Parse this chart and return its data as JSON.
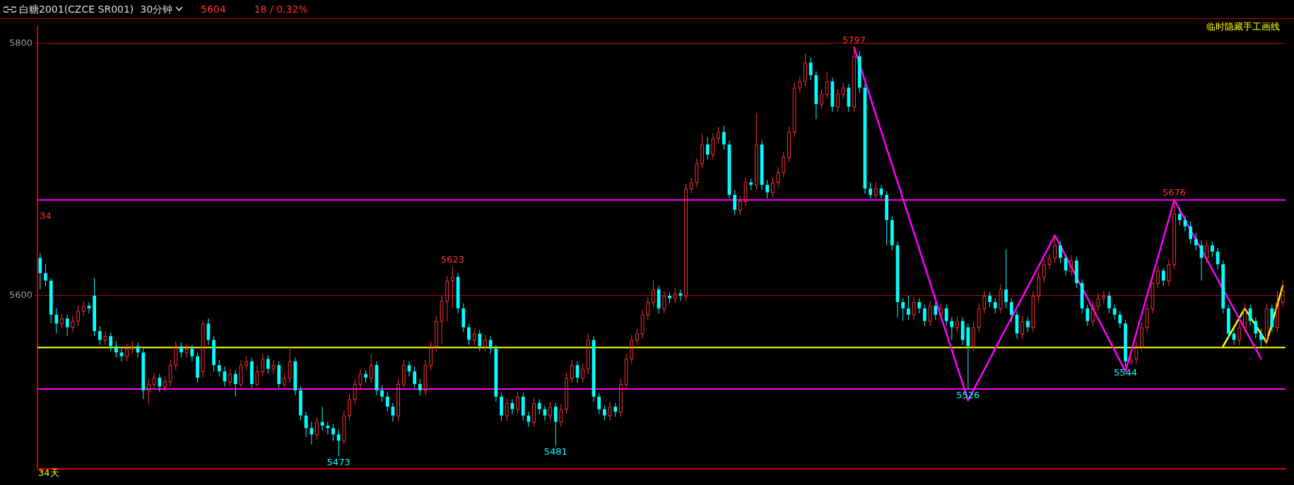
{
  "chart_data": {
    "type": "candlestick",
    "title": "白糖2001(CZCE SR001)  30分钟",
    "categories": [
      null,
      null,
      null,
      null,
      null,
      null,
      null,
      null,
      null,
      null,
      null,
      null,
      null,
      null,
      null,
      null,
      null,
      null,
      null,
      null,
      null,
      null,
      null,
      null,
      null,
      null,
      null,
      null,
      null,
      null,
      null,
      null,
      null,
      null,
      null,
      null,
      null,
      null,
      null,
      null,
      null,
      null,
      null,
      null,
      null,
      null,
      null,
      null,
      null,
      null,
      null,
      null,
      null,
      null,
      null,
      null,
      null,
      null,
      null,
      null,
      null,
      null,
      null,
      null,
      null,
      null,
      null,
      null,
      null,
      null,
      null,
      null,
      null,
      null,
      null,
      null,
      null,
      null,
      null,
      null,
      null,
      null,
      null,
      null,
      null,
      null,
      null,
      null,
      null,
      null,
      null,
      null,
      null,
      null,
      null,
      null,
      null,
      null,
      null,
      null,
      null,
      null,
      null,
      null,
      null,
      null,
      null,
      null,
      null,
      null,
      null,
      null,
      null,
      null,
      null,
      null,
      null,
      null,
      null,
      null,
      null,
      null,
      null,
      null,
      null,
      null,
      null,
      null,
      null,
      null,
      null,
      null,
      null,
      null,
      null,
      null,
      null,
      null,
      null,
      null,
      null,
      null,
      null,
      null,
      null,
      null,
      null,
      null,
      null,
      null,
      null,
      null,
      null,
      null,
      null,
      null,
      null,
      null,
      null,
      null,
      null,
      null,
      null,
      null,
      null,
      null,
      null,
      null,
      null,
      null,
      null,
      null,
      null,
      null,
      null,
      null,
      null,
      null,
      null,
      null,
      null,
      null,
      null,
      null,
      null,
      null,
      null,
      null,
      null,
      null,
      null,
      null,
      null,
      null,
      null,
      null,
      null,
      null,
      null,
      null,
      null,
      null,
      null,
      null,
      null,
      null,
      null,
      null,
      null,
      null,
      null,
      null,
      null,
      null,
      null,
      null,
      null,
      null,
      null,
      null,
      null,
      null,
      null,
      null,
      null,
      null,
      null,
      null,
      null,
      null
    ],
    "ohlc": [
      [
        5630,
        5634,
        5605,
        5618
      ],
      [
        5618,
        5625,
        5608,
        5612
      ],
      [
        5612,
        5614,
        5578,
        5585
      ],
      [
        5585,
        5590,
        5570,
        5578
      ],
      [
        5578,
        5586,
        5574,
        5582
      ],
      [
        5582,
        5585,
        5568,
        5575
      ],
      [
        5575,
        5584,
        5571,
        5580
      ],
      [
        5580,
        5592,
        5576,
        5588
      ],
      [
        5588,
        5596,
        5584,
        5592
      ],
      [
        5592,
        5595,
        5586,
        5590
      ],
      [
        5600,
        5614,
        5568,
        5572
      ],
      [
        5572,
        5576,
        5561,
        5565
      ],
      [
        5565,
        5572,
        5561,
        5568
      ],
      [
        5568,
        5571,
        5556,
        5560
      ],
      [
        5560,
        5564,
        5551,
        5555
      ],
      [
        5555,
        5558,
        5548,
        5552
      ],
      [
        5552,
        5562,
        5548,
        5558
      ],
      [
        5558,
        5564,
        5554,
        5560
      ],
      [
        5560,
        5563,
        5551,
        5555
      ],
      [
        5555,
        5558,
        5518,
        5525
      ],
      [
        5525,
        5534,
        5514,
        5530
      ],
      [
        5530,
        5539,
        5527,
        5535
      ],
      [
        5535,
        5538,
        5524,
        5528
      ],
      [
        5528,
        5536,
        5524,
        5532
      ],
      [
        5532,
        5549,
        5528,
        5545
      ],
      [
        5545,
        5564,
        5541,
        5560
      ],
      [
        5560,
        5563,
        5551,
        5555
      ],
      [
        5555,
        5562,
        5551,
        5558
      ],
      [
        5558,
        5561,
        5548,
        5552
      ],
      [
        5552,
        5555,
        5531,
        5535
      ],
      [
        5540,
        5580,
        5535,
        5578
      ],
      [
        5578,
        5582,
        5561,
        5565
      ],
      [
        5565,
        5568,
        5540,
        5545
      ],
      [
        5545,
        5549,
        5536,
        5540
      ],
      [
        5540,
        5544,
        5528,
        5532
      ],
      [
        5532,
        5542,
        5528,
        5538
      ],
      [
        5538,
        5541,
        5520,
        5530
      ],
      [
        5530,
        5549,
        5527,
        5545
      ],
      [
        5545,
        5552,
        5541,
        5548
      ],
      [
        5548,
        5551,
        5527,
        5530
      ],
      [
        5530,
        5545,
        5527,
        5540
      ],
      [
        5540,
        5554,
        5536,
        5550
      ],
      [
        5550,
        5553,
        5538,
        5542
      ],
      [
        5542,
        5549,
        5538,
        5545
      ],
      [
        5545,
        5548,
        5527,
        5530
      ],
      [
        5530,
        5539,
        5527,
        5535
      ],
      [
        5535,
        5560,
        5531,
        5548
      ],
      [
        5548,
        5551,
        5521,
        5525
      ],
      [
        5525,
        5528,
        5501,
        5505
      ],
      [
        5505,
        5508,
        5488,
        5495
      ],
      [
        5495,
        5500,
        5482,
        5490
      ],
      [
        5490,
        5504,
        5486,
        5500
      ],
      [
        5500,
        5512,
        5493,
        5497
      ],
      [
        5497,
        5500,
        5490,
        5495
      ],
      [
        5495,
        5498,
        5485,
        5490
      ],
      [
        5490,
        5494,
        5473,
        5485
      ],
      [
        5485,
        5509,
        5482,
        5505
      ],
      [
        5505,
        5522,
        5501,
        5518
      ],
      [
        5518,
        5534,
        5514,
        5530
      ],
      [
        5530,
        5542,
        5526,
        5538
      ],
      [
        5538,
        5541,
        5531,
        5535
      ],
      [
        5535,
        5554,
        5531,
        5545
      ],
      [
        5545,
        5548,
        5521,
        5525
      ],
      [
        5525,
        5529,
        5516,
        5520
      ],
      [
        5520,
        5524,
        5508,
        5512
      ],
      [
        5512,
        5515,
        5500,
        5505
      ],
      [
        5505,
        5534,
        5501,
        5530
      ],
      [
        5530,
        5549,
        5527,
        5545
      ],
      [
        5545,
        5548,
        5536,
        5540
      ],
      [
        5540,
        5544,
        5527,
        5530
      ],
      [
        5530,
        5534,
        5521,
        5525
      ],
      [
        5525,
        5549,
        5521,
        5545
      ],
      [
        5545,
        5564,
        5541,
        5560
      ],
      [
        5560,
        5584,
        5556,
        5580
      ],
      [
        5580,
        5600,
        5562,
        5596
      ],
      [
        5596,
        5616,
        5580,
        5612
      ],
      [
        5612,
        5623,
        5590,
        5615
      ],
      [
        5615,
        5618,
        5586,
        5590
      ],
      [
        5590,
        5594,
        5571,
        5575
      ],
      [
        5575,
        5578,
        5561,
        5565
      ],
      [
        5565,
        5574,
        5561,
        5570
      ],
      [
        5570,
        5573,
        5556,
        5560
      ],
      [
        5560,
        5569,
        5556,
        5565
      ],
      [
        5565,
        5568,
        5554,
        5558
      ],
      [
        5558,
        5561,
        5516,
        5520
      ],
      [
        5520,
        5523,
        5501,
        5505
      ],
      [
        5505,
        5519,
        5501,
        5515
      ],
      [
        5515,
        5518,
        5506,
        5510
      ],
      [
        5510,
        5524,
        5506,
        5520
      ],
      [
        5520,
        5523,
        5501,
        5505
      ],
      [
        5505,
        5508,
        5496,
        5500
      ],
      [
        5500,
        5519,
        5496,
        5515
      ],
      [
        5515,
        5518,
        5506,
        5510
      ],
      [
        5510,
        5513,
        5501,
        5505
      ],
      [
        5505,
        5516,
        5501,
        5512
      ],
      [
        5512,
        5515,
        5481,
        5500
      ],
      [
        5500,
        5514,
        5496,
        5510
      ],
      [
        5510,
        5539,
        5506,
        5535
      ],
      [
        5535,
        5549,
        5531,
        5545
      ],
      [
        5545,
        5548,
        5531,
        5535
      ],
      [
        5535,
        5546,
        5531,
        5542
      ],
      [
        5542,
        5570,
        5538,
        5565
      ],
      [
        5565,
        5568,
        5516,
        5520
      ],
      [
        5520,
        5523,
        5506,
        5510
      ],
      [
        5510,
        5513,
        5501,
        5505
      ],
      [
        5505,
        5516,
        5501,
        5512
      ],
      [
        5512,
        5515,
        5504,
        5508
      ],
      [
        5508,
        5534,
        5504,
        5530
      ],
      [
        5530,
        5554,
        5527,
        5550
      ],
      [
        5550,
        5569,
        5546,
        5565
      ],
      [
        5565,
        5574,
        5561,
        5570
      ],
      [
        5570,
        5589,
        5566,
        5585
      ],
      [
        5585,
        5599,
        5581,
        5595
      ],
      [
        5595,
        5612,
        5591,
        5605
      ],
      [
        5605,
        5608,
        5586,
        5590
      ],
      [
        5590,
        5604,
        5586,
        5600
      ],
      [
        5600,
        5603,
        5594,
        5598
      ],
      [
        5598,
        5606,
        5594,
        5602
      ],
      [
        5602,
        5605,
        5596,
        5600
      ],
      [
        5600,
        5689,
        5596,
        5685
      ],
      [
        5685,
        5694,
        5681,
        5690
      ],
      [
        5690,
        5709,
        5686,
        5705
      ],
      [
        5705,
        5728,
        5701,
        5720
      ],
      [
        5720,
        5726,
        5708,
        5712
      ],
      [
        5712,
        5729,
        5708,
        5725
      ],
      [
        5725,
        5734,
        5721,
        5730
      ],
      [
        5730,
        5735,
        5716,
        5720
      ],
      [
        5720,
        5723,
        5677,
        5680
      ],
      [
        5680,
        5684,
        5664,
        5668
      ],
      [
        5668,
        5679,
        5664,
        5675
      ],
      [
        5675,
        5694,
        5671,
        5690
      ],
      [
        5690,
        5693,
        5684,
        5688
      ],
      [
        5688,
        5745,
        5684,
        5720
      ],
      [
        5720,
        5723,
        5684,
        5688
      ],
      [
        5688,
        5692,
        5677,
        5682
      ],
      [
        5682,
        5694,
        5678,
        5690
      ],
      [
        5690,
        5702,
        5686,
        5698
      ],
      [
        5698,
        5714,
        5694,
        5710
      ],
      [
        5710,
        5734,
        5706,
        5730
      ],
      [
        5730,
        5769,
        5726,
        5765
      ],
      [
        5765,
        5774,
        5761,
        5770
      ],
      [
        5770,
        5792,
        5766,
        5785
      ],
      [
        5785,
        5789,
        5771,
        5775
      ],
      [
        5775,
        5778,
        5740,
        5752
      ],
      [
        5752,
        5764,
        5748,
        5760
      ],
      [
        5760,
        5778,
        5756,
        5770
      ],
      [
        5770,
        5773,
        5746,
        5750
      ],
      [
        5750,
        5764,
        5746,
        5760
      ],
      [
        5760,
        5769,
        5756,
        5765
      ],
      [
        5765,
        5768,
        5746,
        5750
      ],
      [
        5750,
        5797,
        5746,
        5790
      ],
      [
        5790,
        5794,
        5761,
        5765
      ],
      [
        5765,
        5768,
        5681,
        5685
      ],
      [
        5685,
        5690,
        5677,
        5680
      ],
      [
        5680,
        5690,
        5677,
        5685
      ],
      [
        5685,
        5688,
        5677,
        5680
      ],
      [
        5680,
        5683,
        5640,
        5660
      ],
      [
        5660,
        5663,
        5636,
        5640
      ],
      [
        5640,
        5643,
        5583,
        5595
      ],
      [
        5595,
        5598,
        5580,
        5590
      ],
      [
        5590,
        5600,
        5581,
        5585
      ],
      [
        5585,
        5599,
        5581,
        5595
      ],
      [
        5595,
        5598,
        5586,
        5590
      ],
      [
        5590,
        5593,
        5576,
        5580
      ],
      [
        5580,
        5596,
        5576,
        5592
      ],
      [
        5592,
        5595,
        5581,
        5585
      ],
      [
        5585,
        5594,
        5581,
        5590
      ],
      [
        5590,
        5593,
        5576,
        5580
      ],
      [
        5580,
        5583,
        5565,
        5575
      ],
      [
        5575,
        5584,
        5571,
        5580
      ],
      [
        5580,
        5583,
        5561,
        5565
      ],
      [
        5575,
        5578,
        5526,
        5560
      ],
      [
        5560,
        5579,
        5556,
        5575
      ],
      [
        5575,
        5594,
        5571,
        5590
      ],
      [
        5590,
        5604,
        5586,
        5600
      ],
      [
        5600,
        5603,
        5591,
        5595
      ],
      [
        5595,
        5598,
        5586,
        5590
      ],
      [
        5590,
        5609,
        5586,
        5605
      ],
      [
        5605,
        5637,
        5590,
        5595
      ],
      [
        5595,
        5598,
        5579,
        5585
      ],
      [
        5585,
        5588,
        5566,
        5570
      ],
      [
        5570,
        5584,
        5566,
        5580
      ],
      [
        5580,
        5583,
        5571,
        5575
      ],
      [
        5575,
        5604,
        5571,
        5600
      ],
      [
        5600,
        5619,
        5596,
        5615
      ],
      [
        5615,
        5629,
        5611,
        5625
      ],
      [
        5625,
        5633,
        5621,
        5630
      ],
      [
        5630,
        5648,
        5626,
        5640
      ],
      [
        5640,
        5643,
        5626,
        5630
      ],
      [
        5630,
        5633,
        5616,
        5620
      ],
      [
        5620,
        5632,
        5616,
        5628
      ],
      [
        5628,
        5631,
        5606,
        5610
      ],
      [
        5610,
        5613,
        5586,
        5590
      ],
      [
        5590,
        5593,
        5576,
        5580
      ],
      [
        5580,
        5596,
        5576,
        5592
      ],
      [
        5592,
        5602,
        5588,
        5598
      ],
      [
        5598,
        5604,
        5594,
        5600
      ],
      [
        5600,
        5603,
        5586,
        5590
      ],
      [
        5590,
        5593,
        5581,
        5585
      ],
      [
        5585,
        5588,
        5574,
        5578
      ],
      [
        5578,
        5581,
        5544,
        5548
      ],
      [
        5548,
        5553,
        5545,
        5550
      ],
      [
        5550,
        5564,
        5546,
        5560
      ],
      [
        5560,
        5579,
        5556,
        5575
      ],
      [
        5575,
        5594,
        5571,
        5590
      ],
      [
        5590,
        5611,
        5586,
        5610
      ],
      [
        5610,
        5624,
        5606,
        5620
      ],
      [
        5620,
        5622,
        5608,
        5612
      ],
      [
        5612,
        5629,
        5608,
        5625
      ],
      [
        5625,
        5676,
        5621,
        5665
      ],
      [
        5665,
        5670,
        5656,
        5660
      ],
      [
        5660,
        5664,
        5651,
        5655
      ],
      [
        5655,
        5659,
        5641,
        5645
      ],
      [
        5645,
        5650,
        5636,
        5640
      ],
      [
        5640,
        5644,
        5612,
        5630
      ],
      [
        5630,
        5644,
        5626,
        5640
      ],
      [
        5640,
        5643,
        5631,
        5635
      ],
      [
        5635,
        5638,
        5621,
        5625
      ],
      [
        5625,
        5628,
        5586,
        5590
      ],
      [
        5590,
        5593,
        5566,
        5570
      ],
      [
        5570,
        5574,
        5561,
        5565
      ],
      [
        5565,
        5579,
        5561,
        5575
      ],
      [
        5575,
        5594,
        5571,
        5590
      ],
      [
        5590,
        5593,
        5576,
        5580
      ],
      [
        5580,
        5583,
        5566,
        5570
      ],
      [
        5570,
        5574,
        5558,
        5565
      ],
      [
        5565,
        5594,
        5561,
        5590
      ],
      [
        5590,
        5593,
        5571,
        5575
      ],
      [
        5575,
        5604,
        5571,
        5595
      ],
      [
        5595,
        5612,
        5591,
        5604
      ]
    ],
    "series": [
      {
        "type": "line",
        "color": "#ff00ff",
        "values": [
          null,
          null,
          null,
          null,
          null,
          null,
          null,
          null,
          null,
          null,
          null,
          null,
          null,
          null,
          null,
          null,
          null,
          null,
          null,
          null,
          null,
          null,
          null,
          null,
          null,
          null,
          null,
          null,
          null,
          null,
          null,
          null,
          null,
          null,
          null,
          null,
          null,
          null,
          null,
          null,
          null,
          null,
          null,
          null,
          null,
          null,
          null,
          null,
          null,
          null,
          null,
          null,
          null,
          null,
          null,
          null,
          null,
          null,
          null,
          null,
          null,
          null,
          null,
          null,
          null,
          null,
          null,
          null,
          null,
          null,
          null,
          null,
          null,
          null,
          null,
          null,
          null,
          null,
          null,
          null,
          null,
          null,
          null,
          null,
          null,
          null,
          null,
          null,
          null,
          null,
          null,
          null,
          null,
          null,
          null,
          null,
          null,
          null,
          null,
          null,
          null,
          null,
          null,
          null,
          null,
          null,
          null,
          null,
          null,
          null,
          null,
          null,
          null,
          null,
          null,
          null,
          null,
          null,
          null,
          null,
          null,
          null,
          null,
          null,
          null,
          null,
          null,
          null,
          null,
          null,
          null,
          null,
          null,
          null,
          null,
          null,
          null,
          null,
          null,
          null,
          null,
          null,
          null,
          null,
          null,
          null,
          null,
          null,
          null,
          null,
          5797,
          null,
          null,
          null,
          null,
          null,
          null,
          null,
          null,
          null,
          null,
          null,
          null,
          null,
          null,
          null,
          null,
          null,
          null,
          null,
          null,
          5517,
          null,
          null,
          null,
          null,
          null,
          null,
          null,
          null,
          null,
          null,
          null,
          null,
          null,
          null,
          null,
          5648,
          null,
          null,
          null,
          null,
          null,
          null,
          null,
          null,
          null,
          null,
          null,
          null,
          5540,
          null,
          null,
          null,
          null,
          null,
          null,
          null,
          null,
          5676,
          null,
          null,
          null,
          null,
          null,
          null,
          null,
          null,
          null,
          null,
          null,
          null,
          null,
          null,
          null,
          5550,
          null,
          null,
          null,
          null
        ]
      },
      {
        "type": "line",
        "color": "#ffff00",
        "values": [
          null,
          null,
          null,
          null,
          null,
          null,
          null,
          null,
          null,
          null,
          null,
          null,
          null,
          null,
          null,
          null,
          null,
          null,
          null,
          null,
          null,
          null,
          null,
          null,
          null,
          null,
          null,
          null,
          null,
          null,
          null,
          null,
          null,
          null,
          null,
          null,
          null,
          null,
          null,
          null,
          null,
          null,
          null,
          null,
          null,
          null,
          null,
          null,
          null,
          null,
          null,
          null,
          null,
          null,
          null,
          null,
          null,
          null,
          null,
          null,
          null,
          null,
          null,
          null,
          null,
          null,
          null,
          null,
          null,
          null,
          null,
          null,
          null,
          null,
          null,
          null,
          null,
          null,
          null,
          null,
          null,
          null,
          null,
          null,
          null,
          null,
          null,
          null,
          null,
          null,
          null,
          null,
          null,
          null,
          null,
          null,
          null,
          null,
          null,
          null,
          null,
          null,
          null,
          null,
          null,
          null,
          null,
          null,
          null,
          null,
          null,
          null,
          null,
          null,
          null,
          null,
          null,
          null,
          null,
          null,
          null,
          null,
          null,
          null,
          null,
          null,
          null,
          null,
          null,
          null,
          null,
          null,
          null,
          null,
          null,
          null,
          null,
          null,
          null,
          null,
          null,
          null,
          null,
          null,
          null,
          null,
          null,
          null,
          null,
          null,
          null,
          null,
          null,
          null,
          null,
          null,
          null,
          null,
          null,
          null,
          null,
          null,
          null,
          null,
          null,
          null,
          null,
          null,
          null,
          null,
          null,
          null,
          null,
          null,
          null,
          null,
          null,
          null,
          null,
          null,
          null,
          null,
          null,
          null,
          null,
          null,
          null,
          null,
          null,
          null,
          null,
          null,
          null,
          null,
          null,
          null,
          null,
          null,
          null,
          null,
          null,
          null,
          null,
          null,
          null,
          null,
          null,
          null,
          null,
          null,
          null,
          null,
          null,
          null,
          null,
          null,
          null,
          null,
          5560,
          null,
          null,
          null,
          5590,
          null,
          null,
          null,
          5563,
          null,
          null,
          5608
        ]
      }
    ],
    "ylim": [
      5463,
      5814
    ],
    "yticks": [
      5800,
      5600
    ],
    "grid": "y",
    "legend": false,
    "marker": "none",
    "line_style": "solid",
    "ref_lines": [
      {
        "axis": "y",
        "value": 5676,
        "color": "#ff00ff"
      },
      {
        "axis": "y",
        "value": 5526,
        "color": "#ff00ff"
      },
      {
        "axis": "y",
        "value": 5559,
        "color": "#ffff00"
      }
    ],
    "annotations": [
      "5604",
      "18 / 0.32%",
      "临时隐藏手工画线",
      "34天",
      "34",
      {
        "text": "5623",
        "y": 5623
      },
      {
        "text": "5473",
        "y": 5473
      },
      {
        "text": "5481",
        "y": 5481
      },
      {
        "text": "5797",
        "y": 5797
      },
      {
        "text": "5526",
        "y": 5526
      },
      {
        "text": "5544",
        "y": 5544
      },
      {
        "text": "5676",
        "y": 5676
      }
    ]
  }
}
